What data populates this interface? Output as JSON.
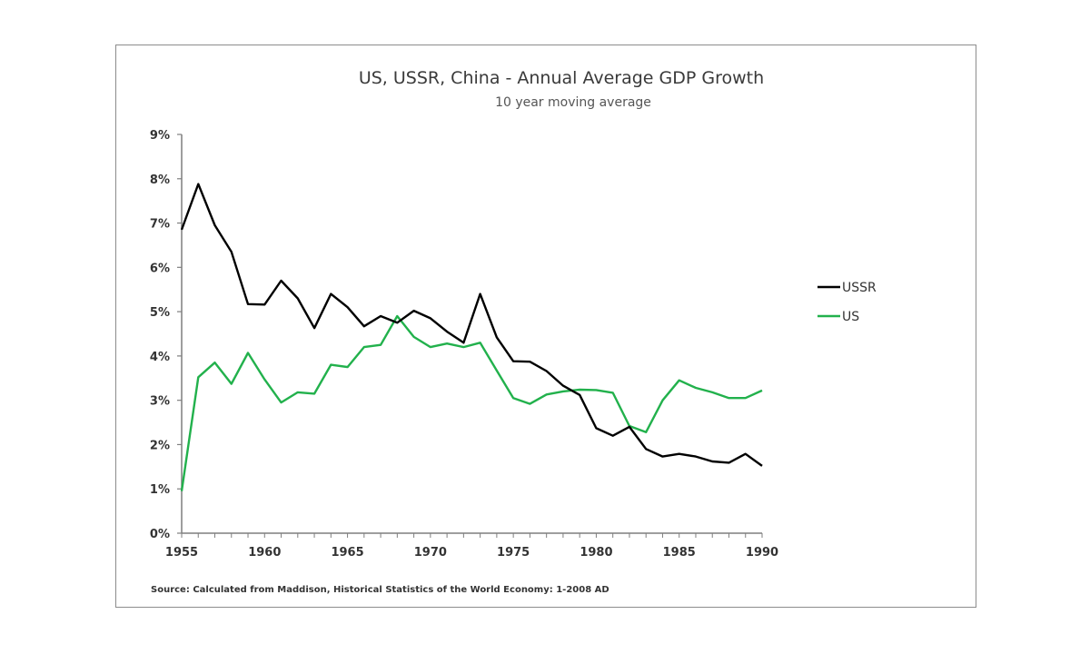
{
  "chart_data": {
    "type": "line",
    "title": "US, USSR, China - Annual Average GDP Growth",
    "subtitle": "10 year moving average",
    "xlabel": "",
    "ylabel": "",
    "xlim": [
      1955,
      1990
    ],
    "ylim": [
      0,
      9
    ],
    "x_ticks": [
      1955,
      1960,
      1965,
      1970,
      1975,
      1980,
      1985,
      1990
    ],
    "x_tick_labels": [
      "1955",
      "1960",
      "1965",
      "1970",
      "1975",
      "1980",
      "1985",
      "1990"
    ],
    "y_ticks": [
      0,
      1,
      2,
      3,
      4,
      5,
      6,
      7,
      8,
      9
    ],
    "y_tick_labels": [
      "0%",
      "1%",
      "2%",
      "3%",
      "4%",
      "5%",
      "6%",
      "7%",
      "8%",
      "9%"
    ],
    "grid": false,
    "legend_position": "right",
    "x": [
      1955,
      1956,
      1957,
      1958,
      1959,
      1960,
      1961,
      1962,
      1963,
      1964,
      1965,
      1966,
      1967,
      1968,
      1969,
      1970,
      1971,
      1972,
      1973,
      1974,
      1975,
      1976,
      1977,
      1978,
      1979,
      1980,
      1981,
      1982,
      1983,
      1984,
      1985,
      1986,
      1987,
      1988,
      1989,
      1990
    ],
    "series": [
      {
        "name": "USSR",
        "color": "#000000",
        "values": [
          6.85,
          7.88,
          6.95,
          6.35,
          5.17,
          5.16,
          5.7,
          5.3,
          4.63,
          5.4,
          5.1,
          4.67,
          4.9,
          4.75,
          5.02,
          4.85,
          4.55,
          4.3,
          5.4,
          4.42,
          3.88,
          3.87,
          3.66,
          3.33,
          3.12,
          2.37,
          2.2,
          2.4,
          1.9,
          1.73,
          1.79,
          1.73,
          1.62,
          1.59,
          1.79,
          1.52
        ]
      },
      {
        "name": "US",
        "color": "#22b14c",
        "values": [
          0.95,
          3.52,
          3.85,
          3.37,
          4.07,
          3.47,
          2.95,
          3.18,
          3.15,
          3.8,
          3.75,
          4.2,
          4.25,
          4.9,
          4.43,
          4.2,
          4.28,
          4.2,
          4.3,
          3.67,
          3.05,
          2.92,
          3.13,
          3.2,
          3.24,
          3.23,
          3.17,
          2.42,
          2.28,
          3.0,
          3.45,
          3.28,
          3.18,
          3.05,
          3.05,
          3.22
        ]
      }
    ],
    "source": "Source: Calculated from Maddison, Historical Statistics of the World Economy:  1-2008 AD"
  }
}
